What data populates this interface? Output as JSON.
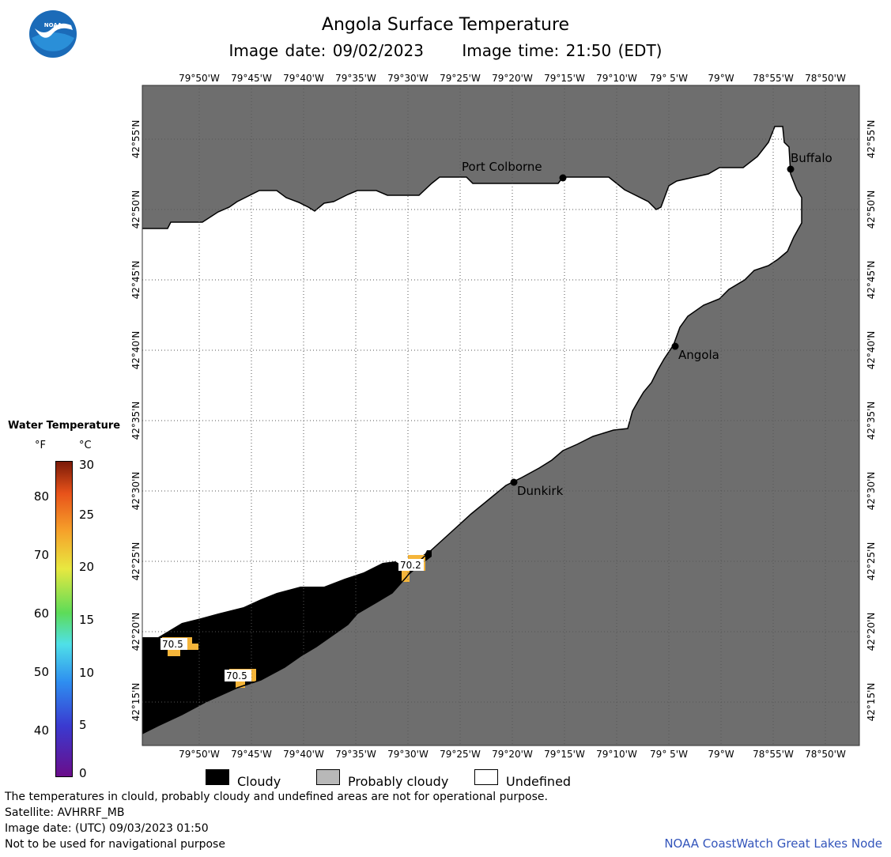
{
  "header": {
    "title": "Angola Surface Temperature",
    "image_date": "Image date: 09/02/2023",
    "image_time": "Image time: 21:50 (EDT)"
  },
  "map": {
    "lon_labels": [
      "79°50'W",
      "79°45'W",
      "79°40'W",
      "79°35'W",
      "79°30'W",
      "79°25'W",
      "79°20'W",
      "79°15'W",
      "79°10'W",
      "79° 5'W",
      "79°W",
      "78°55'W",
      "78°50'W"
    ],
    "lat_labels": [
      "42°55'N",
      "42°50'N",
      "42°45'N",
      "42°40'N",
      "42°35'N",
      "42°30'N",
      "42°25'N",
      "42°20'N",
      "42°15'N"
    ],
    "cities": [
      {
        "name": "Port Colborne"
      },
      {
        "name": "Buffalo"
      },
      {
        "name": "Angola"
      },
      {
        "name": "Dunkirk"
      }
    ],
    "temp_labels": [
      "70.2",
      "70.5",
      "70.5"
    ],
    "colors": {
      "land": "#6e6e6e",
      "cloud": "#000000",
      "undefined": "#ffffff",
      "warm": "#f5b53a"
    }
  },
  "colorbar": {
    "title": "Water Temperature",
    "unit_f": "°F",
    "unit_c": "°C",
    "f_ticks": [
      "80",
      "70",
      "60",
      "50",
      "40"
    ],
    "c_ticks": [
      "30",
      "25",
      "20",
      "15",
      "10",
      "5",
      "0"
    ]
  },
  "legend": {
    "cloudy": "Cloudy",
    "probably_cloudy": "Probably cloudy",
    "undefined": "Undefined"
  },
  "footer": {
    "line1": "The temperatures in clould, probably cloudy and undefined areas are not for operational purpose.",
    "line2": "Satellite: AVHRRF_MB",
    "line3": "Image date: (UTC) 09/03/2023  01:50",
    "line4": "Not to be used for navigational purpose",
    "credit": "NOAA CoastWatch Great Lakes Node"
  }
}
